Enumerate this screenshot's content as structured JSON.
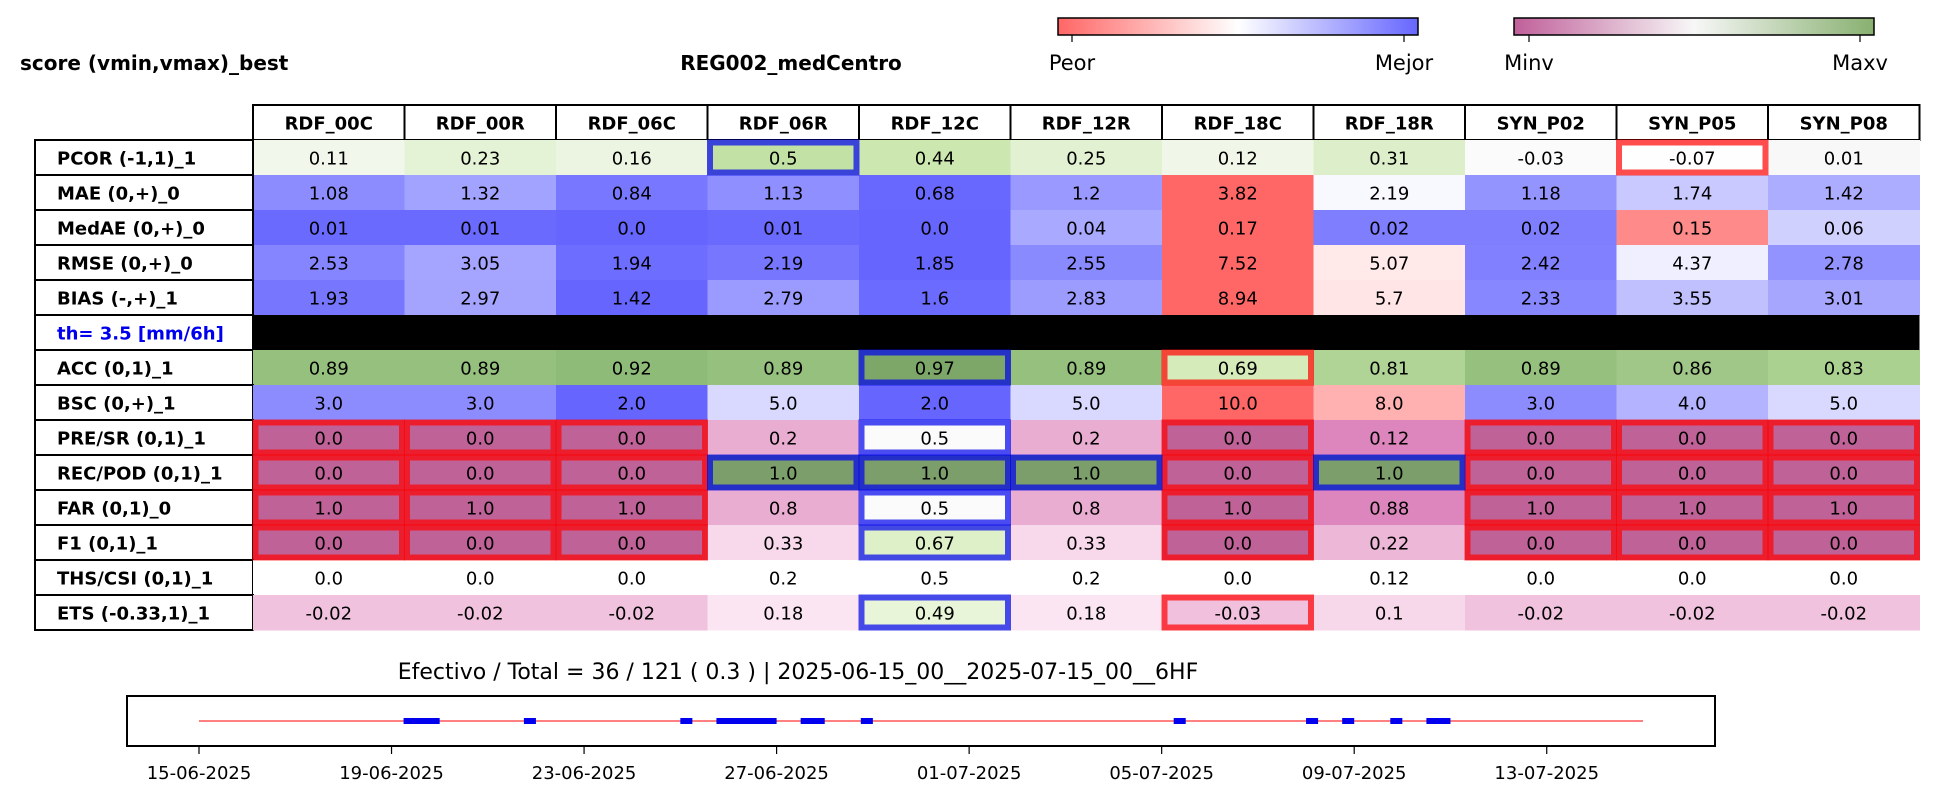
{
  "chart_data": {
    "type": "heatmap",
    "title_left": "score (vmin,vmax)_best",
    "title_center": "REG002_medCentro",
    "colorbar_score": {
      "left_label": "Peor",
      "right_label": "Mejor",
      "colors": [
        "#ff6666",
        "#ffffff",
        "#6666ff"
      ]
    },
    "colorbar_minmax": {
      "left_label": "Minv",
      "right_label": "Maxv",
      "colors": [
        "#c0609a",
        "#f7f7f7",
        "#88b070"
      ]
    },
    "columns": [
      "RDF_00C",
      "RDF_00R",
      "RDF_06C",
      "RDF_06R",
      "RDF_12C",
      "RDF_12R",
      "RDF_18C",
      "RDF_18R",
      "SYN_P02",
      "SYN_P05",
      "SYN_P08"
    ],
    "rows": [
      {
        "label": "PCOR (-1,1)_1",
        "values": [
          "0.11",
          "0.23",
          "0.16",
          "0.5",
          "0.44",
          "0.25",
          "0.12",
          "0.31",
          "-0.03",
          "-0.07",
          "0.01"
        ],
        "colors": [
          "#f1f7ea",
          "#e4f2d5",
          "#ecf5e2",
          "#c2e1a5",
          "#cce8b0",
          "#e2f1d2",
          "#f0f7e8",
          "#dcefca",
          "#fbfbfb",
          "#fefefe",
          "#f8f8f8"
        ]
      },
      {
        "label": "MAE (0,+)_0",
        "values": [
          "1.08",
          "1.32",
          "0.84",
          "1.13",
          "0.68",
          "1.2",
          "3.82",
          "2.19",
          "1.18",
          "1.74",
          "1.42"
        ],
        "colors": [
          "#8c8cff",
          "#a2a2ff",
          "#7777ff",
          "#8f8fff",
          "#6868ff",
          "#9999ff",
          "#ff6666",
          "#f8f8ff",
          "#9494ff",
          "#c9c9ff",
          "#adadff"
        ]
      },
      {
        "label": "MedAE (0,+)_0",
        "values": [
          "0.01",
          "0.01",
          "0.0",
          "0.01",
          "0.0",
          "0.04",
          "0.17",
          "0.02",
          "0.02",
          "0.15",
          "0.06"
        ],
        "colors": [
          "#6a6aff",
          "#6a6aff",
          "#6666ff",
          "#6a6aff",
          "#6666ff",
          "#a9a9ff",
          "#ff6666",
          "#7e7eff",
          "#7e7eff",
          "#ff8a8a",
          "#d0d0ff"
        ]
      },
      {
        "label": "RMSE (0,+)_0",
        "values": [
          "2.53",
          "3.05",
          "1.94",
          "2.19",
          "1.85",
          "2.55",
          "7.52",
          "5.07",
          "2.42",
          "4.37",
          "2.78"
        ],
        "colors": [
          "#8585ff",
          "#a5a5ff",
          "#6d6dff",
          "#7676ff",
          "#6666ff",
          "#8a8aff",
          "#ff6666",
          "#ffe9e9",
          "#8181ff",
          "#efefff",
          "#9393ff"
        ]
      },
      {
        "label": "BIAS (-,+)_1",
        "values": [
          "1.93",
          "2.97",
          "1.42",
          "2.79",
          "1.6",
          "2.83",
          "8.94",
          "5.7",
          "2.33",
          "3.55",
          "3.01"
        ],
        "colors": [
          "#7676ff",
          "#a4a4ff",
          "#6666ff",
          "#9a9aff",
          "#6b6bff",
          "#9c9cff",
          "#ff6666",
          "#ffe5e5",
          "#8787ff",
          "#c0c0ff",
          "#a6a6ff"
        ]
      },
      {
        "label": "th= 3.5 [mm/6h]",
        "separator": true,
        "label_color": "#0000ee"
      },
      {
        "label": "ACC (0,1)_1",
        "values": [
          "0.89",
          "0.89",
          "0.92",
          "0.89",
          "0.97",
          "0.89",
          "0.69",
          "0.81",
          "0.89",
          "0.86",
          "0.83"
        ],
        "colors": [
          "#96c07e",
          "#96c07e",
          "#8fbb78",
          "#96c07e",
          "#7da769",
          "#96c07e",
          "#d5ebba",
          "#b0d496",
          "#96c07e",
          "#a0c788",
          "#aad190"
        ]
      },
      {
        "label": "BSC (0,+)_1",
        "values": [
          "3.0",
          "3.0",
          "2.0",
          "5.0",
          "2.0",
          "5.0",
          "10.0",
          "8.0",
          "3.0",
          "4.0",
          "5.0"
        ],
        "colors": [
          "#8c8cff",
          "#8c8cff",
          "#6666ff",
          "#d9d9ff",
          "#6666ff",
          "#d9d9ff",
          "#ff6666",
          "#ffb0b0",
          "#8c8cff",
          "#b3b3ff",
          "#d9d9ff"
        ]
      },
      {
        "label": "PRE/SR (0,1)_1",
        "values": [
          "0.0",
          "0.0",
          "0.0",
          "0.2",
          "0.5",
          "0.2",
          "0.0",
          "0.12",
          "0.0",
          "0.0",
          "0.0"
        ],
        "colors": [
          "#bf6297",
          "#bf6297",
          "#bf6297",
          "#eaadd2",
          "#fbfbfb",
          "#eaadd2",
          "#bf6297",
          "#dd86bd",
          "#bf6297",
          "#bf6297",
          "#bf6297"
        ]
      },
      {
        "label": "REC/POD (0,1)_1",
        "values": [
          "0.0",
          "0.0",
          "0.0",
          "1.0",
          "1.0",
          "1.0",
          "0.0",
          "1.0",
          "0.0",
          "0.0",
          "0.0"
        ],
        "colors": [
          "#bf6297",
          "#bf6297",
          "#bf6297",
          "#7b9e6b",
          "#7b9e6b",
          "#7b9e6b",
          "#bf6297",
          "#7b9e6b",
          "#bf6297",
          "#bf6297",
          "#bf6297"
        ]
      },
      {
        "label": "FAR (0,1)_0",
        "values": [
          "1.0",
          "1.0",
          "1.0",
          "0.8",
          "0.5",
          "0.8",
          "1.0",
          "0.88",
          "1.0",
          "1.0",
          "1.0"
        ],
        "colors": [
          "#bf6297",
          "#bf6297",
          "#bf6297",
          "#eaadd2",
          "#fbfbfb",
          "#eaadd2",
          "#bf6297",
          "#dd86bd",
          "#bf6297",
          "#bf6297",
          "#bf6297"
        ]
      },
      {
        "label": "F1 (0,1)_1",
        "values": [
          "0.0",
          "0.0",
          "0.0",
          "0.33",
          "0.67",
          "0.33",
          "0.0",
          "0.22",
          "0.0",
          "0.0",
          "0.0"
        ],
        "colors": [
          "#bf6297",
          "#bf6297",
          "#bf6297",
          "#f8d9ec",
          "#ddf0c7",
          "#f8d9ec",
          "#bf6297",
          "#edb7d8",
          "#bf6297",
          "#bf6297",
          "#bf6297"
        ]
      },
      {
        "label": "THS/CSI (0,1)_1",
        "values": [
          "0.0",
          "0.0",
          "0.0",
          "0.2",
          "0.5",
          "0.2",
          "0.0",
          "0.12",
          "0.0",
          "0.0",
          "0.0"
        ],
        "colors": [
          "#ffffff",
          "#ffffff",
          "#ffffff",
          "#ffffff",
          "#ffffff",
          "#ffffff",
          "#ffffff",
          "#ffffff",
          "#ffffff",
          "#ffffff",
          "#ffffff"
        ]
      },
      {
        "label": "ETS (-0.33,1)_1",
        "values": [
          "-0.02",
          "-0.02",
          "-0.02",
          "0.18",
          "0.49",
          "0.18",
          "-0.03",
          "0.1",
          "-0.02",
          "-0.02",
          "-0.02"
        ],
        "colors": [
          "#f1c2de",
          "#f1c2de",
          "#f1c2de",
          "#fbe5f2",
          "#e8f5d8",
          "#fbe5f2",
          "#f0c0dd",
          "#f7d7ea",
          "#f1c2de",
          "#f1c2de",
          "#f1c2de"
        ]
      }
    ],
    "highlights_best": [
      [
        0,
        3
      ],
      [
        6,
        4
      ],
      [
        8,
        4
      ],
      [
        9,
        3
      ],
      [
        9,
        4
      ],
      [
        9,
        5
      ],
      [
        9,
        7
      ],
      [
        10,
        4
      ],
      [
        11,
        4
      ],
      [
        13,
        4
      ]
    ],
    "highlights_worst": [
      [
        0,
        9
      ],
      [
        6,
        6
      ],
      [
        8,
        0
      ],
      [
        8,
        1
      ],
      [
        8,
        2
      ],
      [
        8,
        6
      ],
      [
        8,
        8
      ],
      [
        8,
        9
      ],
      [
        8,
        10
      ],
      [
        9,
        0
      ],
      [
        9,
        1
      ],
      [
        9,
        2
      ],
      [
        9,
        6
      ],
      [
        9,
        8
      ],
      [
        9,
        9
      ],
      [
        9,
        10
      ],
      [
        10,
        0
      ],
      [
        10,
        1
      ],
      [
        10,
        2
      ],
      [
        10,
        6
      ],
      [
        10,
        8
      ],
      [
        10,
        9
      ],
      [
        10,
        10
      ],
      [
        11,
        0
      ],
      [
        11,
        1
      ],
      [
        11,
        2
      ],
      [
        11,
        6
      ],
      [
        11,
        8
      ],
      [
        11,
        9
      ],
      [
        11,
        10
      ],
      [
        13,
        6
      ]
    ],
    "timeline": {
      "title": "Efectivo / Total  =  36 / 121 ( 0.3 ) | 2025-06-15_00__2025-07-15_00__6HF",
      "type": "line",
      "xlim": [
        "2025-06-15",
        "2025-07-15"
      ],
      "ticks": [
        "15-06-2025",
        "19-06-2025",
        "23-06-2025",
        "27-06-2025",
        "01-07-2025",
        "05-07-2025",
        "09-07-2025",
        "13-07-2025"
      ],
      "effective_segments": [
        [
          "2025-06-19 06:00",
          "2025-06-20 00:00"
        ],
        [
          "2025-06-21 18:00",
          "2025-06-22 00:00"
        ],
        [
          "2025-06-25 00:00",
          "2025-06-25 06:00"
        ],
        [
          "2025-06-25 18:00",
          "2025-06-27 00:00"
        ],
        [
          "2025-06-27 12:00",
          "2025-06-28 00:00"
        ],
        [
          "2025-06-28 18:00",
          "2025-06-29 00:00"
        ],
        [
          "2025-07-05 06:00",
          "2025-07-05 12:00"
        ],
        [
          "2025-07-08 00:00",
          "2025-07-08 06:00"
        ],
        [
          "2025-07-08 18:00",
          "2025-07-09 00:00"
        ],
        [
          "2025-07-09 18:00",
          "2025-07-10 00:00"
        ],
        [
          "2025-07-10 12:00",
          "2025-07-11 00:00"
        ]
      ],
      "line_color": "#ff0000",
      "segment_color": "#0000ee"
    }
  }
}
